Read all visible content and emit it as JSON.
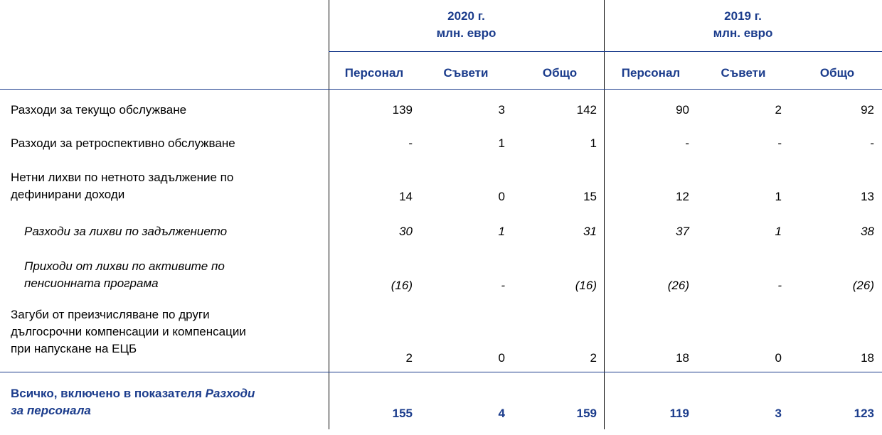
{
  "header": {
    "year_2020": "2020 г.",
    "unit_2020": "млн. евро",
    "year_2019": "2019 г.",
    "unit_2019": "млн. евро",
    "cols": [
      "Персонал",
      "Съвети",
      "Общо",
      "Персонал",
      "Съвети",
      "Общо"
    ]
  },
  "rows": [
    {
      "label": "Разходи за текущо обслужване",
      "values": [
        "139",
        "3",
        "142",
        "90",
        "2",
        "92"
      ]
    },
    {
      "label": "Разходи за ретроспективно обслужване",
      "values": [
        "-",
        "1",
        "1",
        "-",
        "-",
        "-"
      ]
    },
    {
      "label_lines": [
        "Нетни лихви по нетното задължение по",
        "дефинирани доходи"
      ],
      "values": [
        "14",
        "0",
        "15",
        "12",
        "1",
        "13"
      ]
    },
    {
      "label": "Разходи за лихви по задължението",
      "values": [
        "30",
        "1",
        "31",
        "37",
        "1",
        "38"
      ]
    },
    {
      "label_lines": [
        "Приходи от лихви по активите по",
        "пенсионната програма"
      ],
      "values": [
        "(16)",
        "-",
        "(16)",
        "(26)",
        "-",
        "(26)"
      ]
    },
    {
      "label_lines": [
        "Загуби от преизчисляване по други",
        "дългосрочни компенсации и компенсации",
        "при напускане на ЕЦБ"
      ],
      "values": [
        "2",
        "0",
        "2",
        "18",
        "0",
        "18"
      ]
    }
  ],
  "total": {
    "label_prefix": "Всичко, включено в показателя ",
    "label_italic_1": "Разходи",
    "label_italic_2": "за персонала",
    "values": [
      "155",
      "4",
      "159",
      "119",
      "3",
      "123"
    ]
  },
  "colors": {
    "accent": "#1b3c8c"
  }
}
